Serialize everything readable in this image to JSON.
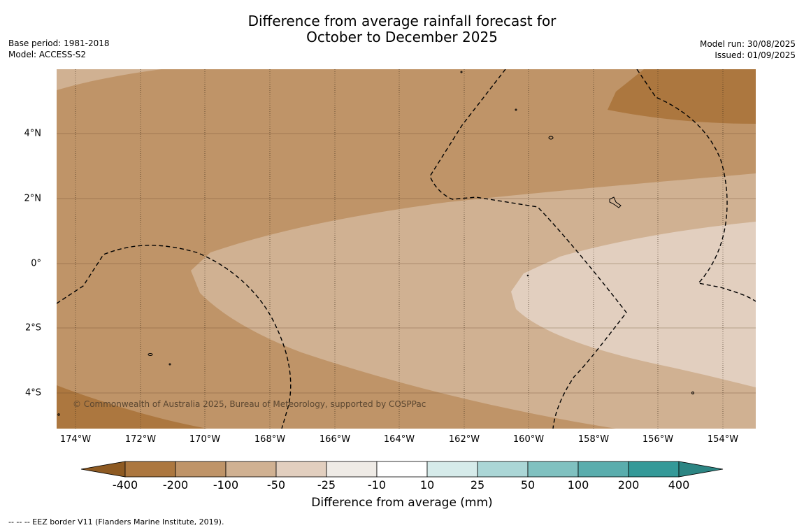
{
  "title": {
    "line1": "Difference from average rainfall forecast for",
    "line2": "October to December 2025"
  },
  "meta_left": {
    "base_period": "Base period: 1981-2018",
    "model": "Model: ACCESS-S2"
  },
  "meta_right": {
    "model_run": "Model run: 30/08/2025",
    "issued": "Issued: 01/09/2025"
  },
  "credit": "© Commonwealth of Australia 2025, Bureau of Meteorology, supported by COSPPac",
  "map": {
    "lat_labels": [
      "4°N",
      "2°N",
      "0°",
      "2°S",
      "4°S"
    ],
    "lon_labels": [
      "174°W",
      "172°W",
      "170°W",
      "168°W",
      "166°W",
      "164°W",
      "162°W",
      "160°W",
      "158°W",
      "156°W",
      "154°W"
    ],
    "regions": [
      {
        "class": "-200 to -100",
        "color": "#bf9468"
      },
      {
        "class": "-400 to -200",
        "color": "#ac773f"
      },
      {
        "class": "-100 to -50",
        "color": "#d0b192"
      },
      {
        "class": "-50 to -25",
        "color": "#e2cfbf"
      }
    ],
    "boundary_type": "EEZ border (dashed)"
  },
  "colorbar": {
    "title": "Difference from average (mm)",
    "ticks": [
      "-400",
      "-200",
      "-100",
      "-50",
      "-25",
      "-10",
      "10",
      "25",
      "50",
      "100",
      "200",
      "400"
    ],
    "colors": [
      "#8e5a22",
      "#ac773f",
      "#bf9468",
      "#d0b192",
      "#e2cfbf",
      "#efebe6",
      "#ffffff",
      "#d6ebea",
      "#abd6d6",
      "#80c1c0",
      "#5aadad",
      "#349998",
      "#2c8583"
    ]
  },
  "footnote": "--  --  -- EEZ border V11 (Flanders Marine Institute, 2019)."
}
